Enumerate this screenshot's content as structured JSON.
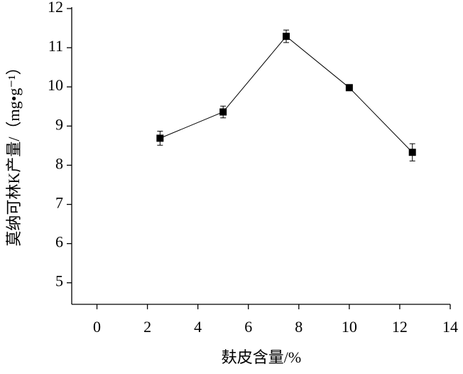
{
  "chart_data": {
    "type": "line",
    "x_label": "麸皮含量/%",
    "y_label": "莫纳可林K产量/（mg•g⁻¹）",
    "x": [
      2.5,
      5,
      7.5,
      10,
      12.5
    ],
    "series": [
      {
        "color": "#000000",
        "values": [
          8.69,
          9.36,
          11.29,
          9.98,
          8.33
        ],
        "errors": [
          0.18,
          0.15,
          0.16,
          0.03,
          0.22
        ]
      }
    ],
    "xlim": [
      -1,
      14
    ],
    "xticks": [
      0,
      2,
      4,
      6,
      8,
      10,
      12,
      14
    ],
    "ylim": [
      4.45,
      12
    ],
    "yticks": [
      5,
      6,
      7,
      8,
      9,
      10,
      11,
      12
    ],
    "grid": false
  }
}
